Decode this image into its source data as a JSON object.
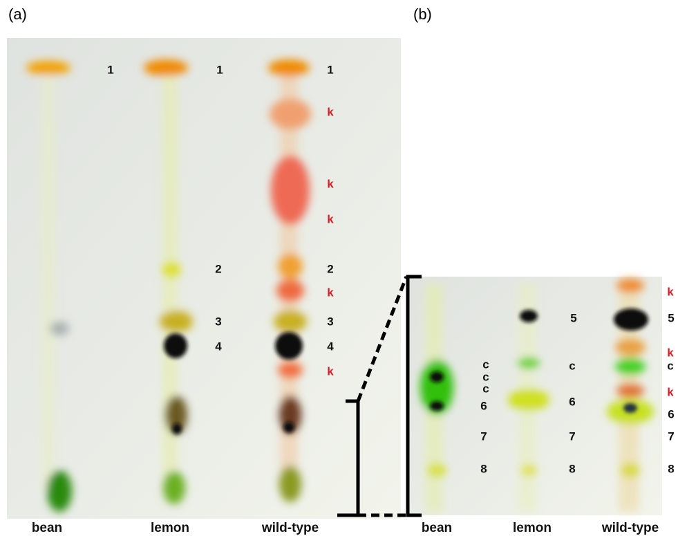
{
  "panels": [
    {
      "label": "(a)",
      "lanes": [
        "bean",
        "lemon",
        "wild-type"
      ],
      "spots": [
        "1",
        "1",
        "1",
        "k",
        "k",
        "k",
        "2",
        "2",
        "k",
        "3",
        "3",
        "4",
        "4",
        "k"
      ]
    },
    {
      "label": "(b)",
      "lanes": [
        "bean",
        "lemon",
        "wild-type"
      ],
      "spots": [
        "k",
        "5",
        "5",
        "k",
        "c",
        "c",
        "c",
        "c",
        "c",
        "k",
        "6",
        "6",
        "6",
        "7",
        "7",
        "7",
        "8",
        "8",
        "8"
      ]
    }
  ]
}
